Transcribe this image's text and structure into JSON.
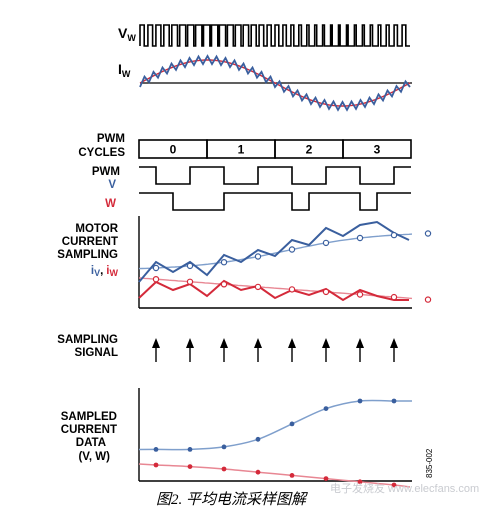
{
  "labels": {
    "vw_main": "V",
    "vw_sub": "W",
    "iw_main": "I",
    "iw_sub": "W",
    "pwm_cycles_1": "PWM",
    "pwm_cycles_2": "CYCLES",
    "pwm": "PWM",
    "v": "V",
    "w": "W",
    "motor_1": "MOTOR",
    "motor_2": "CURRENT",
    "motor_3": "SAMPLING",
    "iv_main": "i",
    "iv_sub": "V",
    "sep": ",",
    "iw2_main": "i",
    "iw2_sub": "W",
    "sampling_1": "SAMPLING",
    "sampling_2": "SIGNAL",
    "sampled_1": "SAMPLED",
    "sampled_2": "CURRENT",
    "sampled_3": "DATA",
    "sampled_4": "(V, W)"
  },
  "cycles": [
    "0",
    "1",
    "2",
    "3"
  ],
  "figure_number": "835-002",
  "caption": "图2. 平均电流采样图解",
  "watermark": "电子发烧友 www.elecfans.com",
  "colors": {
    "blue": "#3a5f9e",
    "light_blue": "#7f9fcc",
    "red": "#d42a3a",
    "light_red": "#e88793",
    "black": "#000000"
  },
  "signals": {
    "pwm_v": [
      1,
      0,
      0,
      1,
      1,
      0,
      0,
      1,
      1,
      0,
      0,
      1,
      1,
      0,
      0,
      1
    ],
    "pwm_w": [
      1,
      1,
      0,
      0,
      0,
      1,
      1,
      1,
      1,
      0,
      1,
      1,
      1,
      0,
      1,
      1
    ],
    "sampled_v": [
      1.2,
      1.2,
      1.4,
      2.0,
      3.2,
      4.4,
      5.0,
      5.0
    ],
    "sampled_w": [
      1.0,
      0.9,
      0.75,
      0.55,
      0.35,
      0.15,
      -0.05,
      -0.25
    ]
  }
}
